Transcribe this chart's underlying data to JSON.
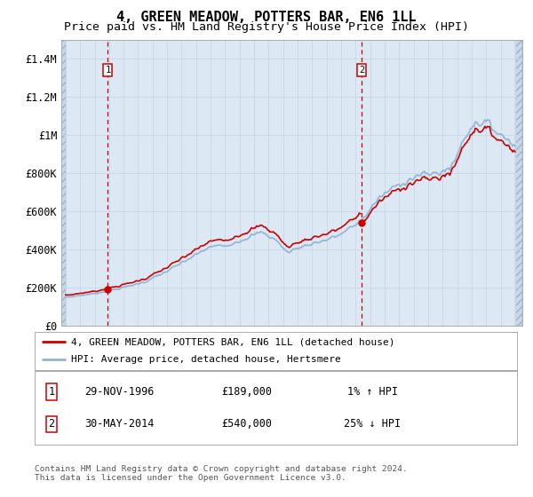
{
  "title": "4, GREEN MEADOW, POTTERS BAR, EN6 1LL",
  "subtitle": "Price paid vs. HM Land Registry's House Price Index (HPI)",
  "ylim": [
    0,
    1500000
  ],
  "yticks": [
    0,
    200000,
    400000,
    600000,
    800000,
    1000000,
    1200000,
    1400000
  ],
  "ytick_labels": [
    "£0",
    "£200K",
    "£400K",
    "£600K",
    "£800K",
    "£1M",
    "£1.2M",
    "£1.4M"
  ],
  "xlim_start": 1993.7,
  "xlim_end": 2025.5,
  "hpi_color": "#92b4d4",
  "price_color": "#cc0000",
  "marker_color": "#cc0000",
  "vline_color": "#cc0000",
  "grid_color": "#c8d8e8",
  "bg_plot": "#dce9f5",
  "bg_hatch": "#c8d8ea",
  "legend_line1": "4, GREEN MEADOW, POTTERS BAR, EN6 1LL (detached house)",
  "legend_line2": "HPI: Average price, detached house, Hertsmere",
  "point1_date": "29-NOV-1996",
  "point1_price": "£189,000",
  "point1_hpi": "1% ↑ HPI",
  "point1_year": 1996.91,
  "point1_value": 189000,
  "point2_date": "30-MAY-2014",
  "point2_price": "£540,000",
  "point2_hpi": "25% ↓ HPI",
  "point2_year": 2014.41,
  "point2_value": 540000,
  "footer": "Contains HM Land Registry data © Crown copyright and database right 2024.\nThis data is licensed under the Open Government Licence v3.0.",
  "title_fontsize": 11,
  "subtitle_fontsize": 9.5
}
